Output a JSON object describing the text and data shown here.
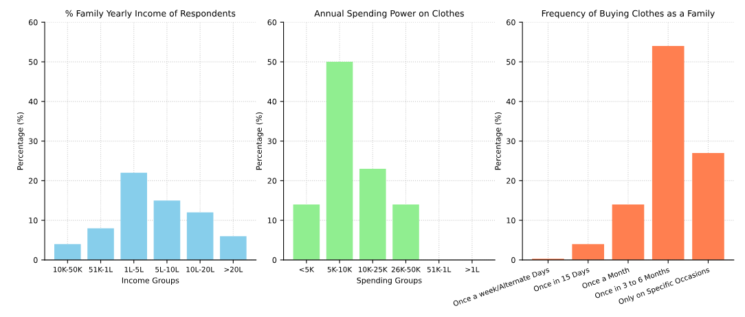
{
  "chart_data": [
    {
      "type": "bar",
      "title": "% Family Yearly Income of Respondents",
      "xlabel": "Income Groups",
      "ylabel": "Percentage (%)",
      "categories": [
        "10K-50K",
        "51K-1L",
        "1L-5L",
        "5L-10L",
        "10L-20L",
        ">20L"
      ],
      "values": [
        4,
        8,
        22,
        15,
        12,
        6
      ],
      "color": "#87ceeb",
      "ylim": [
        0,
        60
      ],
      "yticks": [
        0,
        10,
        20,
        30,
        40,
        50,
        60
      ],
      "grid": true
    },
    {
      "type": "bar",
      "title": "Annual Spending Power on Clothes",
      "xlabel": "Spending Groups",
      "ylabel": "Percentage (%)",
      "categories": [
        "<5K",
        "5K-10K",
        "10K-25K",
        "26K-50K",
        "51K-1L",
        ">1L"
      ],
      "values": [
        14,
        50,
        23,
        14,
        0,
        0
      ],
      "color": "#90ee90",
      "ylim": [
        0,
        60
      ],
      "yticks": [
        0,
        10,
        20,
        30,
        40,
        50,
        60
      ],
      "grid": true
    },
    {
      "type": "bar",
      "title": "Frequency of Buying Clothes as a Family",
      "ylabel": "Percentage (%)",
      "categories": [
        "Once a week/Alternate Days",
        "Once in 15 Days",
        "Once a Month",
        "Once in 3 to 6 Months",
        "Only on Specific Occasions"
      ],
      "values": [
        0.3,
        4,
        14,
        54,
        27
      ],
      "color": "#ff7f50",
      "ylim": [
        0,
        60
      ],
      "yticks": [
        0,
        10,
        20,
        30,
        40,
        50,
        60
      ],
      "grid": true
    }
  ]
}
